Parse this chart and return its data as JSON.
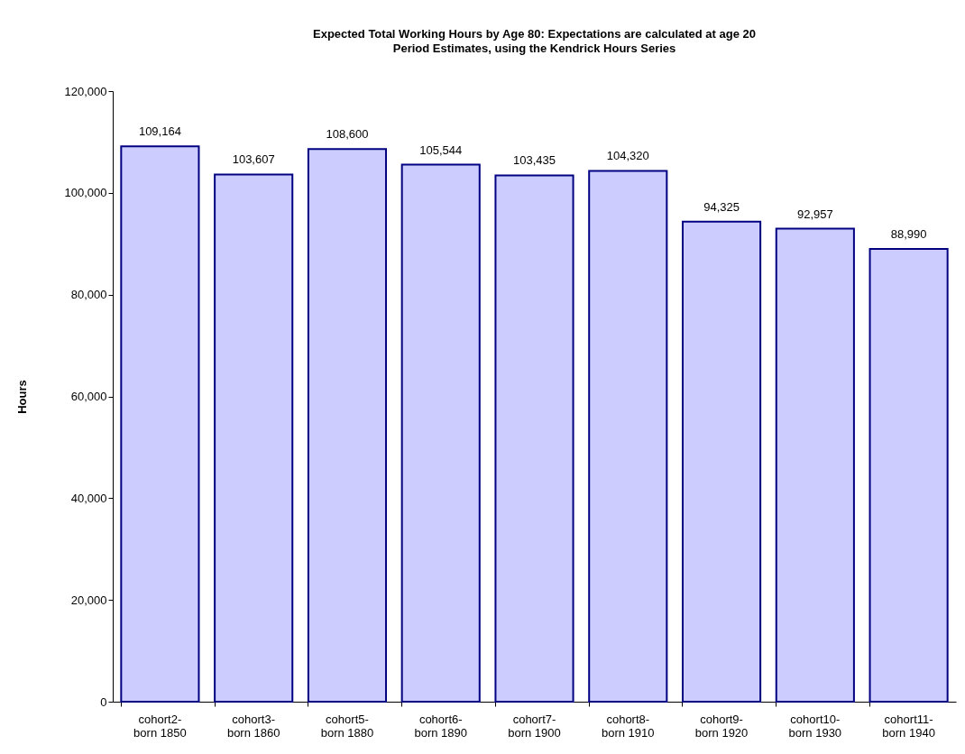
{
  "chart_data": {
    "type": "bar",
    "title": "Expected Total Working Hours by Age 80:  Expectations are calculated at age 20",
    "subtitle": "Period Estimates, using the Kendrick Hours Series",
    "ylabel": "Hours",
    "categories": [
      "cohort2-\nborn 1850",
      "cohort3-\nborn 1860",
      "cohort5-\nborn 1880",
      "cohort6-\nborn 1890",
      "cohort7-\nborn 1900",
      "cohort8-\nborn 1910",
      "cohort9-\nborn 1920",
      "cohort10-\nborn 1930",
      "cohort11-\nborn 1940"
    ],
    "values": [
      109164,
      103607,
      108600,
      105544,
      103435,
      104320,
      94325,
      92957,
      88990
    ],
    "value_labels": [
      "109,164",
      "103,607",
      "108,600",
      "105,544",
      "103,435",
      "104,320",
      "94,325",
      "92,957",
      "88,990"
    ],
    "color": "#ccccff",
    "ylim": [
      0,
      120000
    ],
    "yticks": [
      0,
      {
        "value": 20000,
        "label": "20,000"
      },
      {
        "value": 40000,
        "label": "40,000"
      },
      {
        "value": 60000,
        "label": "60,000"
      },
      {
        "value": 80000,
        "label": "80,000"
      },
      {
        "value": 100000,
        "label": "100,000"
      },
      {
        "value": 120000,
        "label": "120,000"
      }
    ]
  }
}
